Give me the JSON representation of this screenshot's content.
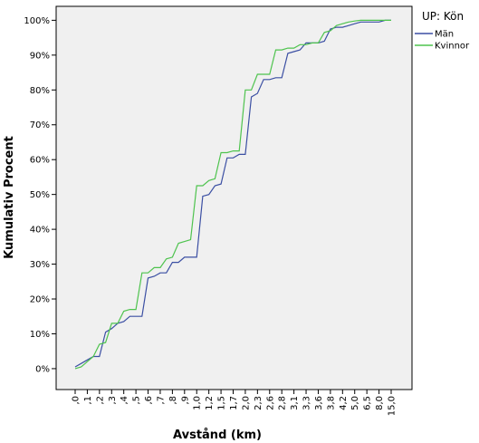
{
  "chart_data": {
    "type": "line",
    "x_label": "Avstånd (km)",
    "y_label": "Kumulativ Procent",
    "legend_title": "UP: Kön",
    "legend_position": "right",
    "categories": [
      ",0",
      null,
      ",1",
      null,
      ",2",
      null,
      ",3",
      null,
      ",4",
      null,
      ",5",
      null,
      ",6",
      null,
      ",7",
      null,
      ",8",
      null,
      ",9",
      null,
      "1,0",
      null,
      "1,2",
      null,
      "1,5",
      null,
      "1,7",
      null,
      "2,0",
      null,
      "2,3",
      null,
      "2,6",
      null,
      "2,8",
      null,
      "3,1",
      null,
      "3,3",
      null,
      "3,6",
      null,
      "3,8",
      null,
      "4,2",
      null,
      "5,0",
      null,
      "6,5",
      null,
      "8,0",
      null,
      "15,0"
    ],
    "series": [
      {
        "name": "Män",
        "color": "#3b4fa3",
        "values": [
          0.5,
          1.5,
          2.5,
          3.5,
          3.5,
          10.5,
          11.5,
          13,
          13.5,
          15,
          15,
          15,
          26,
          26.5,
          27.5,
          27.5,
          30.5,
          30.5,
          32,
          32,
          32,
          49.5,
          50,
          52.5,
          53,
          60.5,
          60.5,
          61.5,
          61.5,
          78,
          79,
          83,
          83,
          83.5,
          83.5,
          90.5,
          91,
          91.5,
          93.5,
          93.5,
          93.5,
          94,
          97.5,
          98,
          98,
          98.5,
          99,
          99.5,
          99.5,
          99.5,
          99.5,
          100,
          100
        ]
      },
      {
        "name": "Kvinnor",
        "color": "#4ec34e",
        "values": [
          0,
          0.5,
          2,
          3.5,
          7,
          7.5,
          13,
          13,
          16.5,
          17,
          17,
          27.5,
          27.5,
          29,
          29,
          31.5,
          32,
          36,
          36.5,
          37,
          52.5,
          52.5,
          54,
          54.5,
          62,
          62,
          62.5,
          62.5,
          80,
          80,
          84.5,
          84.5,
          84.5,
          91.5,
          91.5,
          92,
          92,
          93,
          93,
          93.5,
          93.5,
          96.5,
          97,
          98.5,
          99,
          99.5,
          99.8,
          100,
          100,
          100,
          100,
          100,
          100
        ]
      }
    ],
    "ylim": [
      -6,
      104
    ],
    "yticks": [
      {
        "value": 0,
        "label": "0%"
      },
      {
        "value": 10,
        "label": "10%"
      },
      {
        "value": 20,
        "label": "20%"
      },
      {
        "value": 30,
        "label": "30%"
      },
      {
        "value": 40,
        "label": "40%"
      },
      {
        "value": 50,
        "label": "50%"
      },
      {
        "value": 60,
        "label": "60%"
      },
      {
        "value": 70,
        "label": "70%"
      },
      {
        "value": 80,
        "label": "80%"
      },
      {
        "value": 90,
        "label": "90%"
      },
      {
        "value": 100,
        "label": "100%"
      }
    ],
    "grid": false
  }
}
